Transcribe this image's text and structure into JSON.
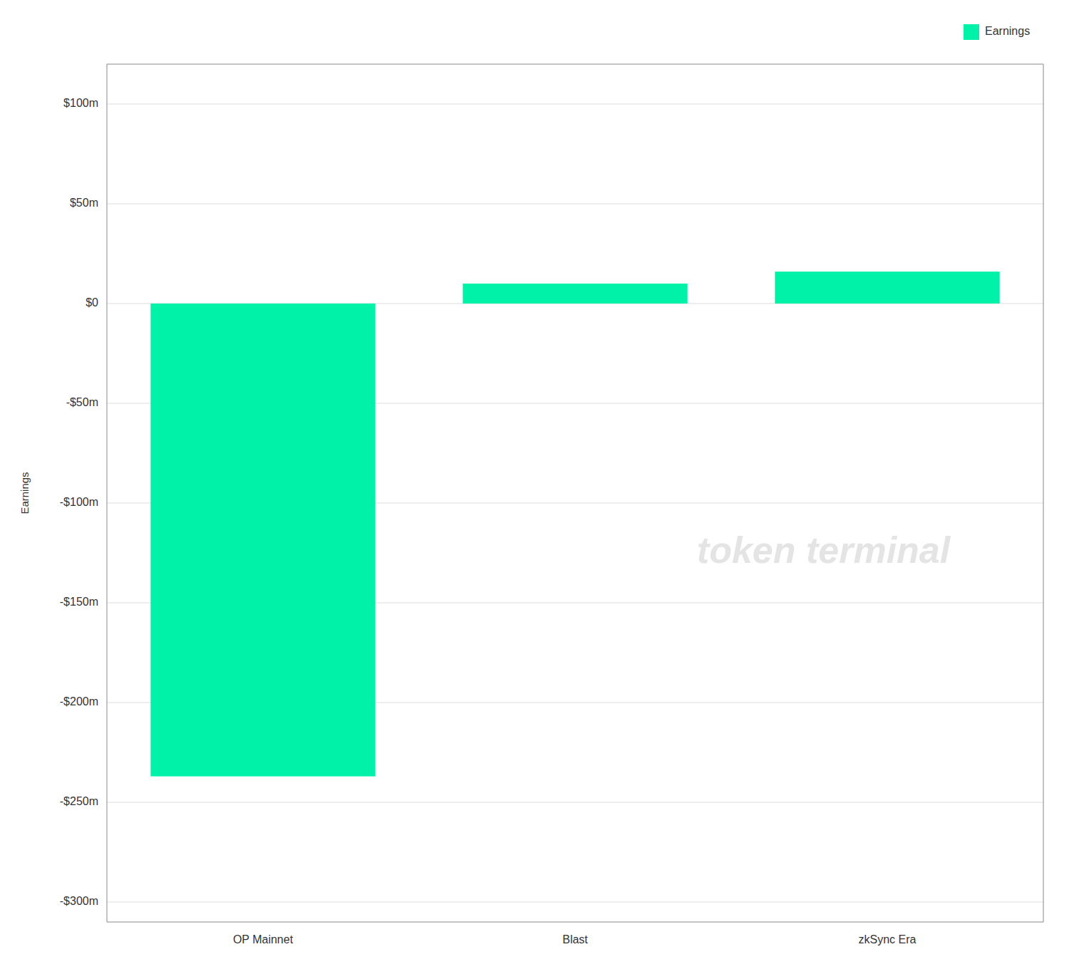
{
  "chart_data": {
    "type": "bar",
    "categories": [
      "OP Mainnet",
      "Blast",
      "zkSync Era"
    ],
    "series": [
      {
        "name": "Earnings",
        "color": "#00f2a9",
        "values": [
          -237,
          10,
          16
        ]
      }
    ],
    "ylabel": "Earnings",
    "ylim": [
      -310,
      120
    ],
    "yticks": [
      {
        "value": 100,
        "label": "$100m"
      },
      {
        "value": 50,
        "label": "$50m"
      },
      {
        "value": 0,
        "label": "$0"
      },
      {
        "value": -50,
        "label": "-$50m"
      },
      {
        "value": -100,
        "label": "-$100m"
      },
      {
        "value": -150,
        "label": "-$150m"
      },
      {
        "value": -200,
        "label": "-$200m"
      },
      {
        "value": -250,
        "label": "-$250m"
      },
      {
        "value": -300,
        "label": "-$300m"
      }
    ],
    "grid": true,
    "legend": "upper right",
    "annotations": [
      "token terminal"
    ]
  }
}
